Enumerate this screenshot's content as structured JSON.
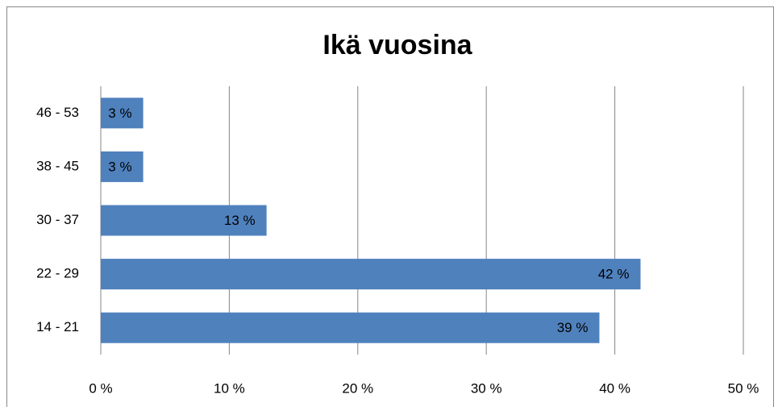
{
  "chart_data": {
    "type": "hbar",
    "title": "Ikä vuosina",
    "categories": [
      "14 - 21",
      "22 - 29",
      "30 - 37",
      "38 - 45",
      "46 - 53"
    ],
    "values": [
      38.8,
      42,
      12.9,
      3.3,
      3.3
    ],
    "value_labels": [
      "39 %",
      "42 %",
      "13 %",
      "3 %",
      "3 %"
    ],
    "color": "#4f81bd",
    "xlim": [
      0,
      50
    ],
    "xticks": [
      {
        "value": 0,
        "label": "0 %"
      },
      {
        "value": 10,
        "label": "10 %"
      },
      {
        "value": 20,
        "label": "20 %"
      },
      {
        "value": 30,
        "label": "30 %"
      },
      {
        "value": 40,
        "label": "40 %"
      },
      {
        "value": 50,
        "label": "50 %"
      }
    ],
    "grid": true
  }
}
